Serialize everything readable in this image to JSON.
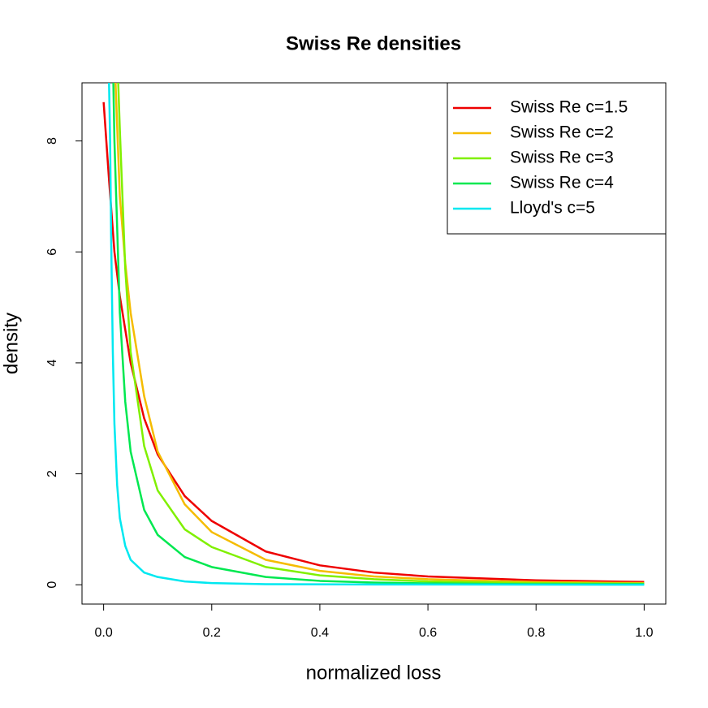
{
  "chart_data": {
    "type": "line",
    "title": "Swiss Re densities",
    "x_label": "normalized loss",
    "y_label": "density",
    "xlim": [
      -0.04,
      1.04
    ],
    "ylim": [
      -0.348,
      9.048
    ],
    "xticks": [
      {
        "value": 0,
        "label": "0.0"
      },
      0.2,
      0.4,
      0.6,
      0.8,
      {
        "value": 1,
        "label": "1.0"
      }
    ],
    "yticks": [
      0,
      2,
      4,
      6,
      8
    ],
    "legend": "topright",
    "series": [
      {
        "name": "Swiss Re c=1.5",
        "color": "#ee0000",
        "x": [
          0,
          0.005,
          0.01,
          0.02,
          0.03,
          0.05,
          0.075,
          0.1,
          0.15,
          0.2,
          0.3,
          0.4,
          0.5,
          0.6,
          0.8,
          1.0
        ],
        "values": [
          8.7,
          8.0,
          7.3,
          6.0,
          5.2,
          4.0,
          3.0,
          2.35,
          1.6,
          1.15,
          0.6,
          0.35,
          0.22,
          0.15,
          0.08,
          0.05
        ]
      },
      {
        "name": "Swiss Re c=2",
        "color": "#f5bc00",
        "x": [
          0.022,
          0.03,
          0.04,
          0.05,
          0.075,
          0.1,
          0.15,
          0.2,
          0.3,
          0.4,
          0.5,
          0.6,
          0.8,
          1.0
        ],
        "values": [
          9.05,
          7.0,
          5.8,
          4.9,
          3.4,
          2.4,
          1.45,
          0.95,
          0.45,
          0.25,
          0.15,
          0.1,
          0.05,
          0.03
        ]
      },
      {
        "name": "Swiss Re c=3",
        "color": "#80f000",
        "x": [
          0.027,
          0.03,
          0.04,
          0.05,
          0.075,
          0.1,
          0.15,
          0.2,
          0.3,
          0.4,
          0.5,
          0.6,
          0.8,
          1.0
        ],
        "values": [
          9.05,
          8.2,
          5.7,
          4.2,
          2.5,
          1.7,
          1.0,
          0.68,
          0.32,
          0.17,
          0.1,
          0.06,
          0.03,
          0.02
        ]
      },
      {
        "name": "Swiss Re c=4",
        "color": "#00e850",
        "x": [
          0.018,
          0.02,
          0.03,
          0.04,
          0.05,
          0.075,
          0.1,
          0.15,
          0.2,
          0.3,
          0.4,
          0.5,
          0.6,
          0.8,
          1.0
        ],
        "values": [
          9.05,
          8.0,
          4.9,
          3.3,
          2.4,
          1.35,
          0.9,
          0.5,
          0.32,
          0.14,
          0.07,
          0.04,
          0.025,
          0.01,
          0.01
        ]
      },
      {
        "name": "Lloyd's c=5",
        "color": "#00e8f0",
        "x": [
          0.01,
          0.012,
          0.014,
          0.017,
          0.02,
          0.025,
          0.03,
          0.04,
          0.05,
          0.075,
          0.1,
          0.15,
          0.2,
          0.3,
          0.5,
          1.0
        ],
        "values": [
          9.05,
          8.0,
          6.2,
          4.2,
          2.9,
          1.8,
          1.2,
          0.7,
          0.45,
          0.22,
          0.14,
          0.06,
          0.03,
          0.01,
          0.005,
          0.002
        ]
      }
    ]
  }
}
